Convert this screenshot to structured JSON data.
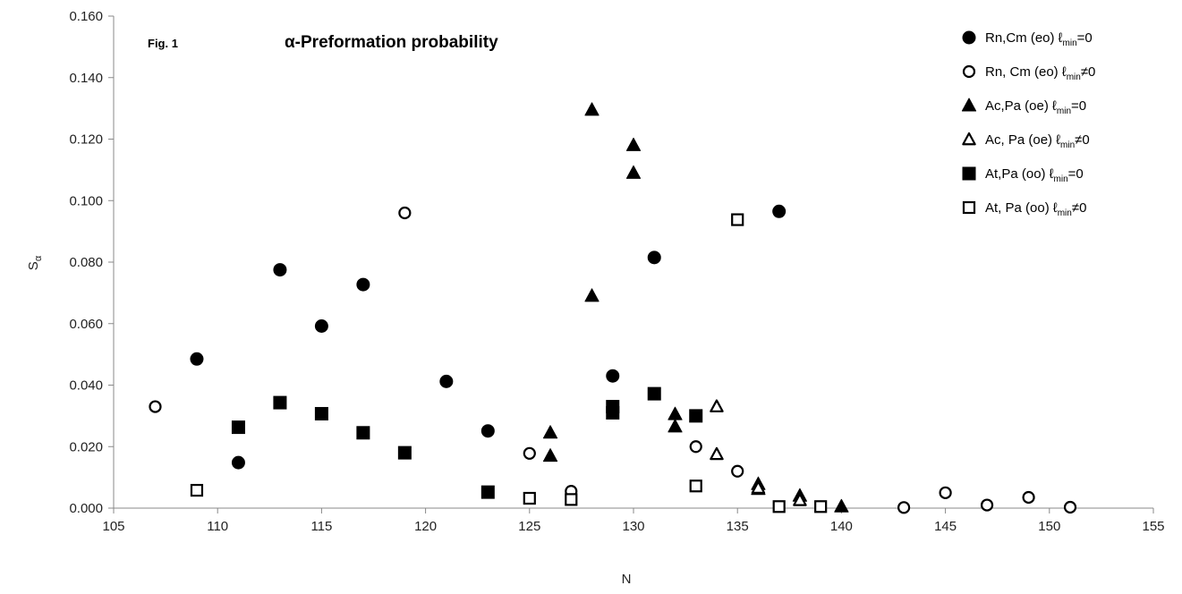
{
  "chart_data": {
    "type": "scatter",
    "fig_label": "Fig. 1",
    "title": "α-Preformation probability",
    "xlabel": "N",
    "ylabel": "Sα",
    "xlim": [
      105,
      155
    ],
    "ylim": [
      0,
      0.16
    ],
    "xticks": [
      "105",
      "110",
      "115",
      "120",
      "125",
      "130",
      "135",
      "140",
      "145",
      "150",
      "155"
    ],
    "yticks": [
      "0.000",
      "0.020",
      "0.040",
      "0.060",
      "0.080",
      "0.100",
      "0.120",
      "0.140",
      "0.160"
    ],
    "grid": false,
    "legend_position": "top-right",
    "series": [
      {
        "label_main": "Rn,Cm (eo) ℓ",
        "label_sub": "min",
        "label_end": "=0",
        "marker": "circle",
        "filled": true,
        "points": [
          [
            109,
            0.0485
          ],
          [
            111,
            0.0148
          ],
          [
            113,
            0.0775
          ],
          [
            115,
            0.0592
          ],
          [
            117,
            0.0727
          ],
          [
            121,
            0.0412
          ],
          [
            123,
            0.0251
          ],
          [
            129,
            0.043
          ],
          [
            131,
            0.0815
          ],
          [
            137,
            0.0965
          ]
        ]
      },
      {
        "label_main": "Rn, Cm (eo) ℓ",
        "label_sub": "min",
        "label_end": "≠0",
        "marker": "circle",
        "filled": false,
        "points": [
          [
            107,
            0.033
          ],
          [
            119,
            0.096
          ],
          [
            125,
            0.0178
          ],
          [
            127,
            0.0055
          ],
          [
            133,
            0.02
          ],
          [
            135,
            0.012
          ],
          [
            143,
            0.0002
          ],
          [
            145,
            0.005
          ],
          [
            147,
            0.001
          ],
          [
            149,
            0.0035
          ],
          [
            151,
            0.0003
          ]
        ]
      },
      {
        "label_main": "Ac,Pa  (oe)  ℓ",
        "label_sub": "min",
        "label_end": "=0",
        "marker": "triangle",
        "filled": true,
        "points": [
          [
            126,
            0.0245
          ],
          [
            126,
            0.017
          ],
          [
            128,
            0.1295
          ],
          [
            128,
            0.069
          ],
          [
            130,
            0.118
          ],
          [
            130,
            0.109
          ],
          [
            132,
            0.0305
          ],
          [
            132,
            0.0265
          ],
          [
            136,
            0.0078
          ],
          [
            136,
            0.0062
          ],
          [
            138,
            0.004
          ],
          [
            140,
            0.0005
          ]
        ]
      },
      {
        "label_main": "Ac,  Pa  (oe)  ℓ",
        "label_sub": "min",
        "label_end": "≠0",
        "marker": "triangle",
        "filled": false,
        "points": [
          [
            134,
            0.033
          ],
          [
            134,
            0.0175
          ],
          [
            136,
            0.0065
          ],
          [
            138,
            0.0025
          ]
        ]
      },
      {
        "label_main": "At,Pa   (oo)   ℓ",
        "label_sub": "min",
        "label_end": "=0",
        "marker": "square",
        "filled": true,
        "points": [
          [
            111,
            0.0263
          ],
          [
            113,
            0.0343
          ],
          [
            115,
            0.0307
          ],
          [
            117,
            0.0245
          ],
          [
            119,
            0.018
          ],
          [
            123,
            0.0052
          ],
          [
            129,
            0.033
          ],
          [
            129,
            0.031
          ],
          [
            131,
            0.0372
          ],
          [
            133,
            0.03
          ]
        ]
      },
      {
        "label_main": "At, Pa (oo) ℓ",
        "label_sub": "min",
        "label_end": "≠0",
        "marker": "square",
        "filled": false,
        "points": [
          [
            109,
            0.0058
          ],
          [
            125,
            0.0032
          ],
          [
            127,
            0.0028
          ],
          [
            133,
            0.0072
          ],
          [
            135,
            0.0938
          ],
          [
            137,
            0.0005
          ],
          [
            139,
            0.0005
          ]
        ]
      }
    ]
  }
}
